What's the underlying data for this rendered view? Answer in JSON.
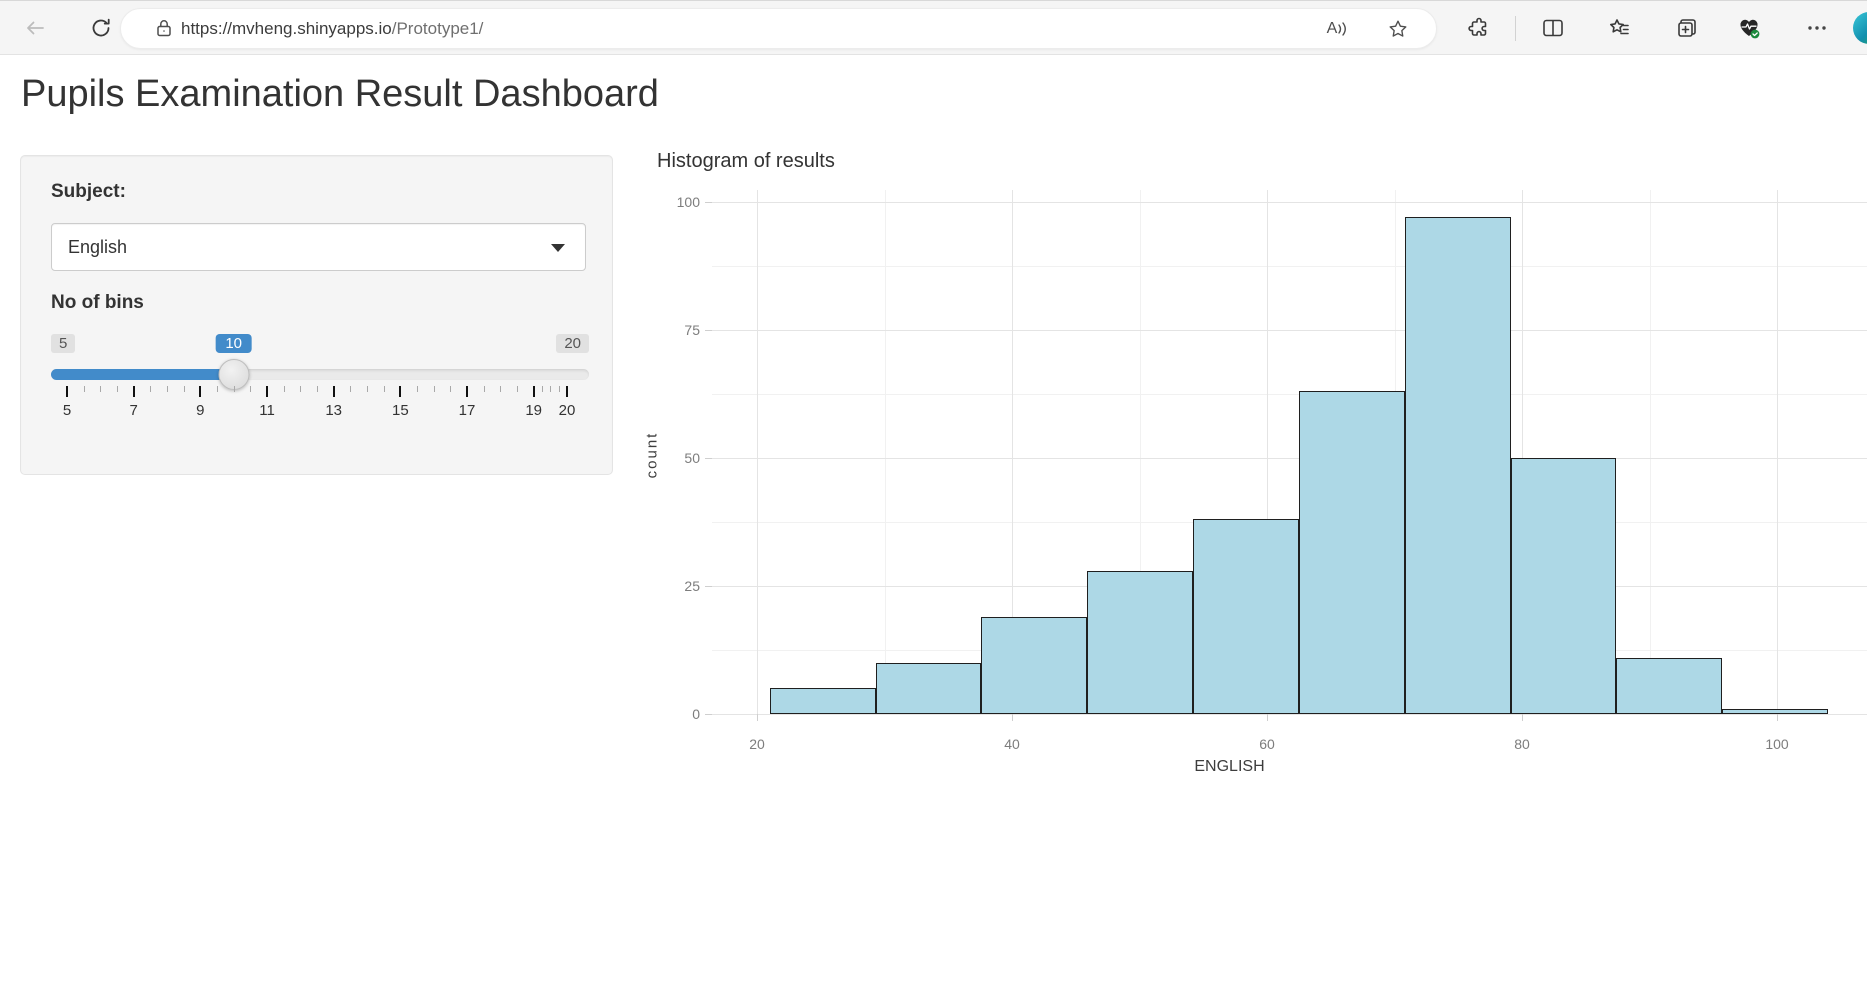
{
  "browser": {
    "url": {
      "scheme_host": "https://mvheng.shinyapps.io",
      "path": "/Prototype1/"
    },
    "icons": [
      "back",
      "refresh",
      "lock",
      "read-aloud",
      "add-favorite",
      "extensions",
      "split-screen",
      "favorites",
      "collections",
      "browser-essentials",
      "more",
      "profile"
    ],
    "read_aloud_letter": "A"
  },
  "page": {
    "title": "Pupils Examination Result Dashboard"
  },
  "sidebar": {
    "subject_label": "Subject:",
    "subject_value": "English",
    "bins_label": "No of bins",
    "slider": {
      "min": 5,
      "max": 20,
      "value": 10,
      "min_label": "5",
      "value_label": "10",
      "max_label": "20",
      "major_ticks": [
        5,
        7,
        9,
        11,
        13,
        15,
        17,
        19,
        20
      ],
      "accent_color": "#428bca"
    }
  },
  "chart_data": {
    "type": "bar",
    "title": "Histogram of results",
    "xlabel": "ENGLISH",
    "ylabel": "count",
    "bin_start": 21,
    "bin_width": 8.3,
    "counts": [
      5,
      10,
      19,
      28,
      38,
      63,
      97,
      50,
      11,
      1
    ],
    "x_ticks": [
      20,
      40,
      60,
      80,
      100
    ],
    "y_ticks": [
      0,
      25,
      50,
      75,
      100
    ],
    "xlim": [
      16.5,
      107
    ],
    "ylim": [
      0,
      102
    ],
    "grid": "on",
    "legend": "none",
    "bar_fill": "#add8e6",
    "bar_border": "#1f1f1f"
  }
}
